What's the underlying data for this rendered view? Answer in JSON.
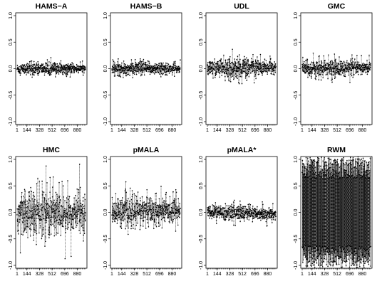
{
  "chart_data": {
    "type": "scatter",
    "layout": "2x4 grid of trace panels",
    "x_ticks": [
      "1",
      "144",
      "328",
      "512",
      "696",
      "880"
    ],
    "y_ticks": [
      "-1.0",
      "-0.5",
      "0.0",
      "0.5",
      "1.0"
    ],
    "xlim": [
      1,
      1000
    ],
    "ylim": [
      -1.0,
      1.0
    ],
    "panels": [
      {
        "title": "HAMS−A",
        "center": 0.0,
        "core_halfwidth": 0.1,
        "outlier_halfwidth": 0.17,
        "drift": 0.0,
        "noise_growth": 0.25,
        "clip": false
      },
      {
        "title": "HAMS−B",
        "center": 0.0,
        "core_halfwidth": 0.11,
        "outlier_halfwidth": 0.19,
        "drift": 0.0,
        "noise_growth": 0.3,
        "clip": false
      },
      {
        "title": "UDL",
        "center": 0.0,
        "core_halfwidth": 0.16,
        "outlier_halfwidth": 0.3,
        "drift": 0.03,
        "noise_growth": 0.4,
        "clip": false
      },
      {
        "title": "GMC",
        "center": 0.0,
        "core_halfwidth": 0.14,
        "outlier_halfwidth": 0.3,
        "drift": 0.0,
        "noise_growth": 0.3,
        "clip": false
      },
      {
        "title": "HMC",
        "center": -0.02,
        "core_halfwidth": 0.45,
        "outlier_halfwidth": 0.95,
        "drift": 0.0,
        "noise_growth": 0.2,
        "clip": true
      },
      {
        "title": "pMALA",
        "center": 0.0,
        "core_halfwidth": 0.27,
        "outlier_halfwidth": 0.42,
        "drift": 0.04,
        "noise_growth": 0.3,
        "clip": false
      },
      {
        "title": "pMALA*",
        "center": 0.0,
        "core_halfwidth": 0.13,
        "outlier_halfwidth": 0.25,
        "drift": -0.03,
        "noise_growth": 0.3,
        "clip": false
      },
      {
        "title": "RWM",
        "center": 0.0,
        "core_halfwidth": 1.0,
        "outlier_halfwidth": 1.0,
        "drift": 0.0,
        "noise_growth": 0.0,
        "clip": true
      }
    ]
  }
}
